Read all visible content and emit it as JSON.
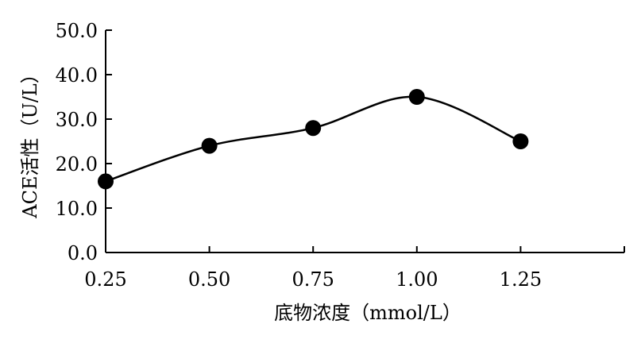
{
  "chart_data": {
    "type": "line",
    "xlabel": "底物浓度（mmol/L）",
    "ylabel": "ACE活性（U/L）",
    "x_tick_labels": [
      "0.25",
      "0.50",
      "0.75",
      "1.00",
      "1.25"
    ],
    "y_tick_labels": [
      "0.0",
      "10.0",
      "20.0",
      "30.0",
      "40.0",
      "50.0"
    ],
    "xlim": [
      0.25,
      1.5
    ],
    "ylim": [
      0,
      50
    ],
    "grid": false,
    "series": [
      {
        "x": [
          0.25,
          0.5,
          0.75,
          1.0,
          1.25
        ],
        "y": [
          16,
          24,
          28,
          35,
          25
        ]
      }
    ],
    "line_color": "#000000",
    "marker_color": "#000000"
  }
}
